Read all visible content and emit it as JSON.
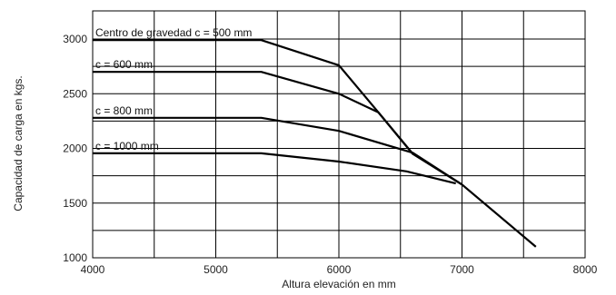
{
  "chart_data": {
    "type": "line",
    "title": "",
    "xlabel": "Altura elevación en mm",
    "ylabel": "Capacidad de carga en kgs.",
    "xlim": [
      4000,
      8000
    ],
    "ylim": [
      1000,
      3000
    ],
    "xticks": [
      4000,
      5000,
      6000,
      7000,
      8000
    ],
    "yticks": [
      1000,
      1500,
      2000,
      2500,
      3000
    ],
    "grid": true,
    "series": [
      {
        "name": "Centro de gravedad c = 500 mm",
        "x": [
          4000,
          5370,
          6000,
          6320,
          6600,
          7000,
          7600
        ],
        "y": [
          2990,
          2990,
          2760,
          2330,
          1950,
          1670,
          1100
        ]
      },
      {
        "name": "c = 600 mm",
        "x": [
          4000,
          5370,
          6000,
          6320,
          6600,
          7000
        ],
        "y": [
          2700,
          2700,
          2500,
          2330,
          1950,
          1670
        ]
      },
      {
        "name": "c = 800 mm",
        "x": [
          4000,
          5370,
          6000,
          6600,
          7000
        ],
        "y": [
          2280,
          2280,
          2160,
          1960,
          1670
        ]
      },
      {
        "name": "c = 1000 mm",
        "x": [
          4000,
          5370,
          6000,
          6550,
          6950
        ],
        "y": [
          1955,
          1955,
          1880,
          1790,
          1680
        ]
      }
    ]
  }
}
